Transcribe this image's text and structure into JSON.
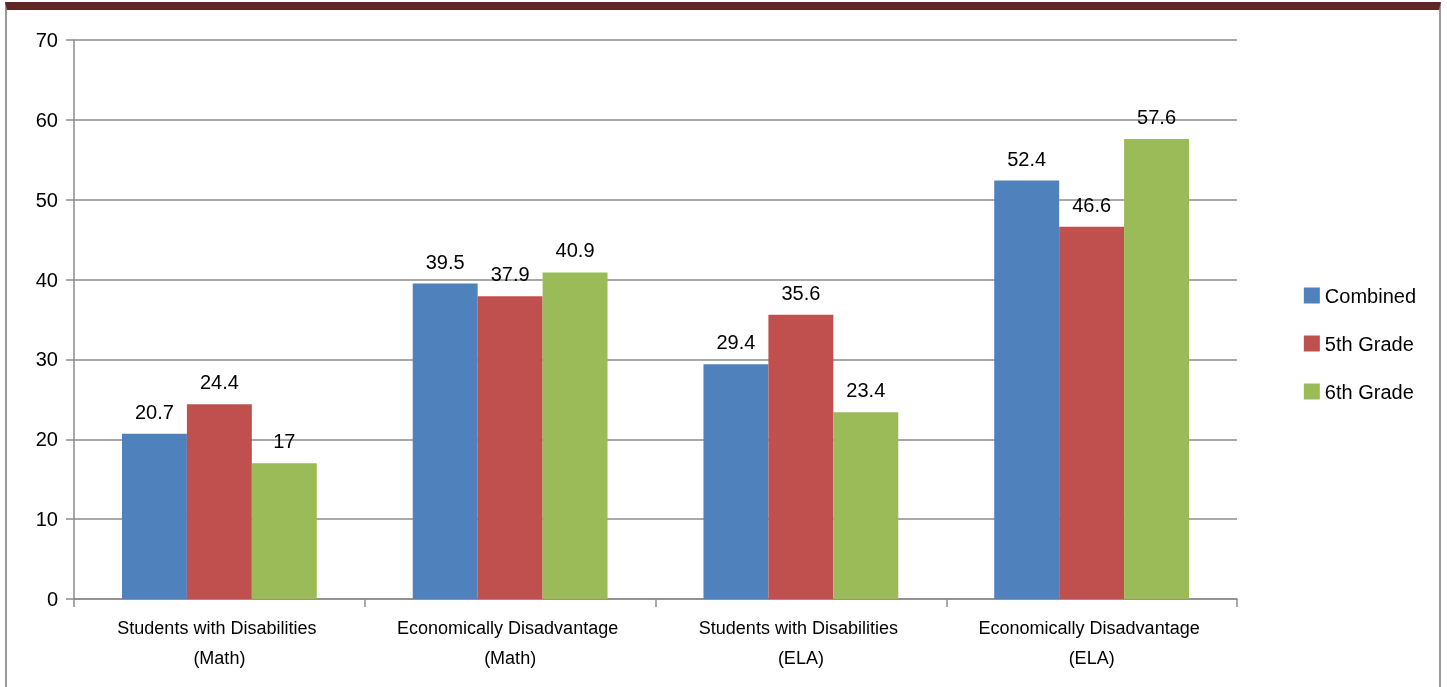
{
  "chart_data": {
    "type": "bar",
    "categories": [
      "Students with Disabilities (Math)",
      "Economically Disadvantage (Math)",
      "Students with Disabilities (ELA)",
      "Economically Disadvantage (ELA)"
    ],
    "series": [
      {
        "name": "Combined",
        "color": "#4f81bd",
        "values": [
          20.7,
          39.5,
          29.4,
          52.4
        ]
      },
      {
        "name": "5th Grade",
        "color": "#c0504d",
        "values": [
          24.4,
          37.9,
          35.6,
          46.6
        ]
      },
      {
        "name": "6th Grade",
        "color": "#9bbb59",
        "values": [
          17,
          40.9,
          23.4,
          57.6
        ]
      }
    ],
    "ylim": [
      0,
      70
    ],
    "yticks": [
      0,
      10,
      20,
      30,
      40,
      50,
      60,
      70
    ],
    "grid": "y",
    "legend": "right",
    "data_labels": true
  }
}
